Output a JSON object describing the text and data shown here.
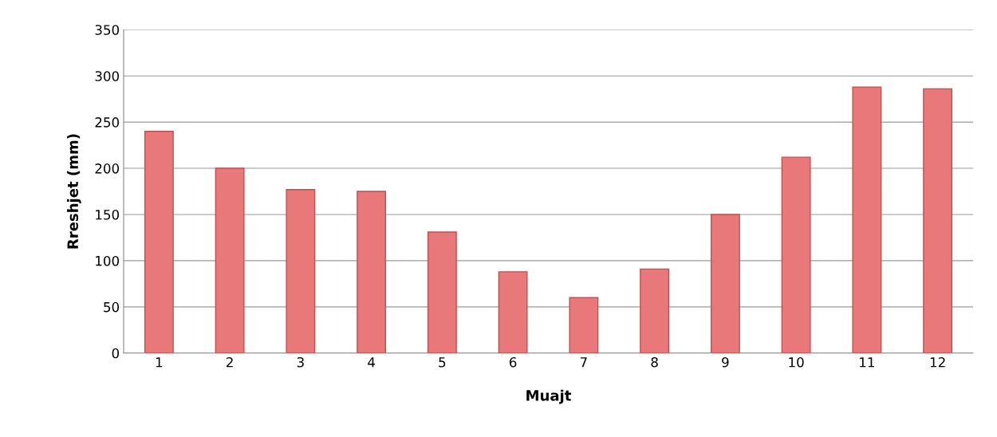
{
  "chart_data": {
    "type": "bar",
    "xlabel": "Muajt",
    "ylabel": "Rreshjet (mm)",
    "categories": [
      "1",
      "2",
      "3",
      "4",
      "5",
      "6",
      "7",
      "8",
      "9",
      "10",
      "11",
      "12"
    ],
    "values": [
      240,
      200,
      177,
      175,
      131,
      88,
      60,
      91,
      150,
      212,
      288,
      286
    ],
    "color": "#e8787a",
    "ylim": [
      0,
      350
    ],
    "yticks": [
      0,
      50,
      100,
      150,
      200,
      250,
      300,
      350
    ],
    "grid": "y",
    "legend": false
  }
}
